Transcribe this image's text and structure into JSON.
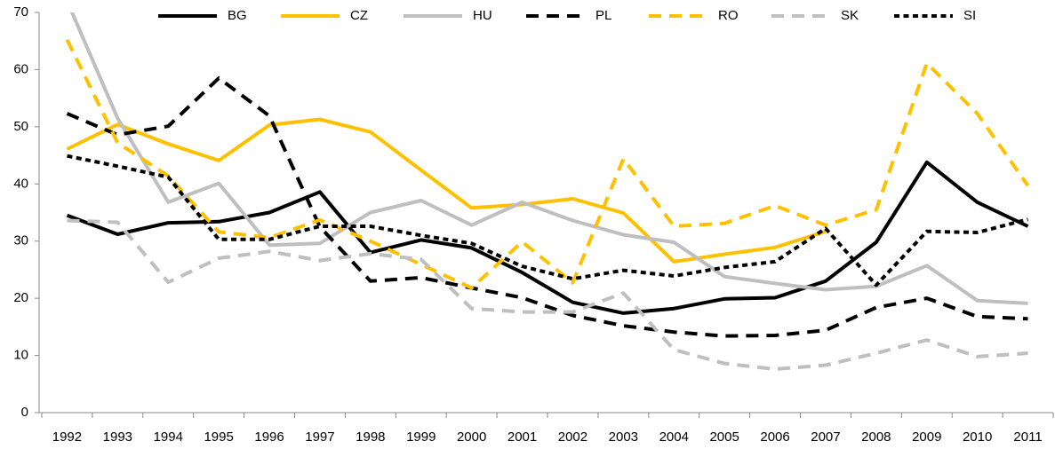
{
  "chart_data": {
    "type": "line",
    "categories": [
      "1992",
      "1993",
      "1994",
      "1995",
      "1996",
      "1997",
      "1998",
      "1999",
      "2000",
      "2001",
      "2002",
      "2003",
      "2004",
      "2005",
      "2006",
      "2007",
      "2008",
      "2009",
      "2010",
      "2011"
    ],
    "ylim": [
      0,
      70
    ],
    "yticks": [
      0,
      10,
      20,
      30,
      40,
      50,
      60,
      70
    ],
    "grid": false,
    "legend": "top",
    "series": [
      {
        "name": "BG",
        "color": "#000000",
        "dash": "solid",
        "values": [
          34.5,
          31.2,
          33.2,
          33.4,
          35,
          38.6,
          28,
          30.2,
          28.8,
          24.5,
          19.3,
          17.4,
          18.2,
          19.9,
          20.1,
          23,
          29.8,
          43.8,
          36.8,
          32.6
        ]
      },
      {
        "name": "CZ",
        "color": "#FFC000",
        "dash": "solid",
        "values": [
          46.1,
          50.4,
          47,
          44.1,
          50.3,
          51.3,
          49.1,
          42.4,
          35.8,
          36.4,
          37.4,
          34.9,
          26.4,
          27.7,
          28.9,
          31.7,
          null,
          null,
          null,
          null
        ]
      },
      {
        "name": "HU",
        "color": "#BFBFBF",
        "dash": "solid",
        "values": [
          72,
          51.5,
          36.8,
          40.1,
          29.3,
          29.6,
          35,
          37.1,
          32.8,
          36.8,
          33.6,
          31.1,
          29.8,
          23.8,
          22.6,
          21.5,
          22.1,
          25.7,
          19.6,
          19.1
        ]
      },
      {
        "name": "PL",
        "color": "#000000",
        "dash": "long",
        "values": [
          52.3,
          48.6,
          50.1,
          58.5,
          51.9,
          32.5,
          23,
          23.6,
          21.8,
          20.1,
          17,
          15.2,
          14.1,
          13.4,
          13.5,
          14.4,
          18.4,
          20,
          16.8,
          16.4
        ]
      },
      {
        "name": "RO",
        "color": "#FFC000",
        "dash": "long",
        "values": [
          65.2,
          47.2,
          41.4,
          31.6,
          30.6,
          33.7,
          30,
          25.9,
          21.8,
          29.9,
          22.7,
          44.4,
          32.6,
          33.1,
          36.2,
          32.8,
          35.5,
          61.1,
          52.3,
          39.7
        ]
      },
      {
        "name": "SK",
        "color": "#BFBFBF",
        "dash": "long",
        "values": [
          33.6,
          33.3,
          22.8,
          27,
          28.2,
          26.6,
          27.8,
          26.8,
          18.2,
          17.6,
          17.6,
          20.9,
          11,
          8.6,
          7.6,
          8.3,
          10.4,
          12.7,
          9.8,
          10.4
        ]
      },
      {
        "name": "SI",
        "color": "#000000",
        "dash": "short",
        "values": [
          44.9,
          43.1,
          41.2,
          30.3,
          30.3,
          32.6,
          32.6,
          31,
          29.6,
          25.6,
          23.4,
          24.9,
          23.9,
          25.4,
          26.4,
          32.2,
          22.3,
          31.7,
          31.5,
          33.8
        ]
      }
    ]
  }
}
